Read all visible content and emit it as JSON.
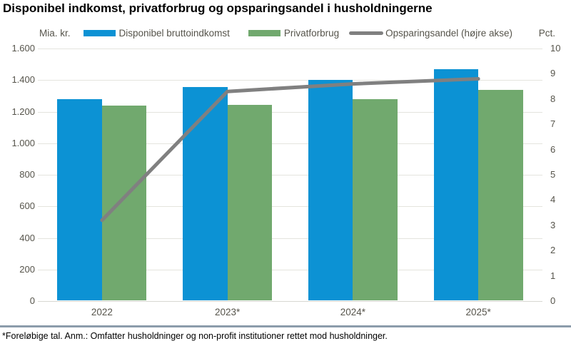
{
  "title": "Disponibel indkomst, privatforbrug og opsparingsandel i husholdningerne",
  "footer": {
    "note": "*Foreløbige tal. Anm.: Omfatter husholdninger og non-profit institutioner rettet mod husholdninger."
  },
  "left_axis": {
    "unit": "Mia. kr.",
    "labels": [
      "1.600",
      "1.400",
      "1.200",
      "1.000",
      "800",
      "600",
      "400",
      "200",
      "0"
    ],
    "values": [
      1600,
      1400,
      1200,
      1000,
      800,
      600,
      400,
      200,
      0
    ],
    "min": 0,
    "max": 1600
  },
  "right_axis": {
    "unit": "Pct.",
    "labels": [
      "10",
      "9",
      "8",
      "7",
      "6",
      "5",
      "4",
      "3",
      "2",
      "1",
      "0"
    ],
    "values": [
      10,
      9,
      8,
      7,
      6,
      5,
      4,
      3,
      2,
      1,
      0
    ],
    "min": 0,
    "max": 10
  },
  "colors": {
    "income_bar": "#0c92d4",
    "consumption_bar": "#71a96e",
    "savings_line": "#808080",
    "gridline": "#e4e4de",
    "axis_text": "#56544b",
    "footer_separator": "#8c9cab"
  },
  "chart_data": {
    "type": "bar",
    "subtype": "grouped-bars-with-line",
    "title": "Disponibel indkomst, privatforbrug og opsparingsandel i husholdningerne",
    "categories": [
      "2022",
      "2023*",
      "2024*",
      "2025*"
    ],
    "series": [
      {
        "name": "Disponibel bruttoindkomst",
        "type": "bar",
        "axis": "left",
        "color": "#0c92d4",
        "values": [
          1275,
          1350,
          1395,
          1465
        ]
      },
      {
        "name": "Privatforbrug",
        "type": "bar",
        "axis": "left",
        "color": "#71a96e",
        "values": [
          1235,
          1240,
          1275,
          1335
        ]
      },
      {
        "name": "Opsparingsandel (højre akse)",
        "type": "line",
        "axis": "right",
        "color": "#808080",
        "values": [
          3.2,
          8.3,
          8.6,
          8.8
        ]
      }
    ],
    "ylabel_left": "Mia. kr.",
    "ylabel_right": "Pct.",
    "ylim_left": [
      0,
      1600
    ],
    "ylim_right": [
      0,
      10
    ],
    "grid": true,
    "legend_position": "top"
  }
}
